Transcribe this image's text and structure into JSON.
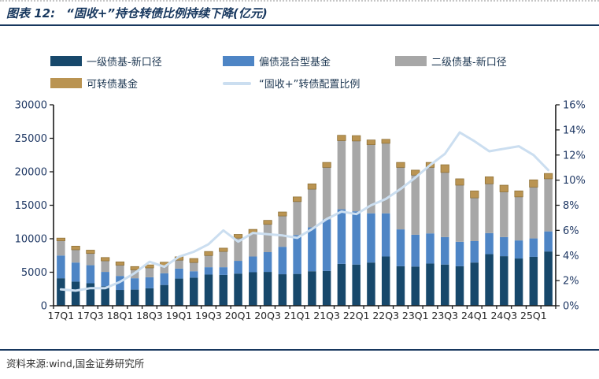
{
  "header": {
    "label": "图表 12:",
    "title": "“固收+”持仓转债比例持续下降(亿元)"
  },
  "legend": [
    {
      "label": "一级债基-新口径",
      "color": "#17486B",
      "symbol": "box"
    },
    {
      "label": "偏债混合型基金",
      "color": "#4E85C5",
      "symbol": "box"
    },
    {
      "label": "二级债基-新口径",
      "color": "#A7A7A7",
      "symbol": "box"
    },
    {
      "label": "可转债基金",
      "color": "#BA9452",
      "symbol": "box"
    },
    {
      "label": "“固收+”转债配置比例",
      "color": "#CBDEF0",
      "symbol": "line"
    }
  ],
  "chart_data": {
    "type": "bar",
    "subtype": "stacked-bars-with-line-overlay",
    "title": "“固收+”持仓转债比例持续下降(亿元)",
    "categories": [
      "17Q1",
      "17Q2",
      "17Q3",
      "17Q4",
      "18Q1",
      "18Q2",
      "18Q3",
      "18Q4",
      "19Q1",
      "19Q2",
      "19Q3",
      "19Q4",
      "20Q1",
      "20Q2",
      "20Q3",
      "20Q4",
      "21Q1",
      "21Q2",
      "21Q3",
      "21Q4",
      "22Q1",
      "22Q2",
      "22Q3",
      "22Q4",
      "23Q1",
      "23Q2",
      "23Q3",
      "23Q4",
      "24Q1",
      "24Q2",
      "24Q3",
      "24Q4",
      "25Q1",
      "25Q2"
    ],
    "x_tick_labels": [
      "17Q1",
      "17Q3",
      "18Q1",
      "18Q3",
      "19Q1",
      "19Q3",
      "20Q1",
      "20Q3",
      "21Q1",
      "21Q3",
      "22Q1",
      "22Q3",
      "23Q1",
      "23Q3",
      "24Q1",
      "24Q3",
      "25Q1"
    ],
    "series": [
      {
        "name": "一级债基-新口径",
        "type": "bar-stack",
        "axis": "left",
        "color": "#17486B",
        "values": [
          4100,
          3600,
          3350,
          2900,
          2350,
          2400,
          2600,
          3100,
          4050,
          4200,
          4650,
          4600,
          4800,
          5000,
          5050,
          4700,
          4750,
          5150,
          5200,
          6250,
          6150,
          6450,
          7350,
          5900,
          5850,
          6300,
          6150,
          5900,
          6450,
          7700,
          7400,
          7050,
          7300,
          8100
        ]
      },
      {
        "name": "偏债混合型基金",
        "type": "bar-stack",
        "axis": "left",
        "color": "#4E85C5",
        "values": [
          3400,
          2850,
          2700,
          2150,
          2100,
          1700,
          1650,
          1750,
          1500,
          950,
          1100,
          1150,
          1900,
          2350,
          2950,
          4100,
          5800,
          6550,
          7700,
          8150,
          7950,
          7350,
          6450,
          5500,
          4750,
          4500,
          4100,
          3650,
          3200,
          3150,
          2850,
          2700,
          2750,
          3000
        ]
      },
      {
        "name": "二级债基-新口径",
        "type": "bar-stack",
        "axis": "left",
        "color": "#A7A7A7",
        "values": [
          2200,
          1900,
          1750,
          1650,
          1600,
          1250,
          1400,
          1100,
          1250,
          1300,
          1750,
          2350,
          3400,
          3400,
          4150,
          4600,
          5000,
          5700,
          7750,
          10250,
          10500,
          10250,
          10450,
          9250,
          8900,
          9850,
          9650,
          8450,
          6450,
          7350,
          6750,
          6500,
          7650,
          7850
        ]
      },
      {
        "name": "可转债基金",
        "type": "bar-stack",
        "axis": "left",
        "color": "#BA9452",
        "values": [
          400,
          550,
          500,
          500,
          500,
          500,
          450,
          550,
          500,
          600,
          600,
          500,
          550,
          650,
          600,
          600,
          700,
          800,
          750,
          800,
          800,
          700,
          600,
          750,
          750,
          750,
          1150,
          950,
          1050,
          1050,
          1000,
          900,
          1100,
          800
        ]
      },
      {
        "name": "“固收+”转债配置比例",
        "type": "line",
        "axis": "right",
        "color": "#CBDEF0",
        "values": [
          1.3,
          1.2,
          1.4,
          1.4,
          1.9,
          2.6,
          3.5,
          3.1,
          3.9,
          4.3,
          4.9,
          6.0,
          5.1,
          5.8,
          5.7,
          5.6,
          5.4,
          6.1,
          6.9,
          7.5,
          7.3,
          8.0,
          8.5,
          9.3,
          10.2,
          11.2,
          12.1,
          13.8,
          13.1,
          12.3,
          12.5,
          12.7,
          12.0,
          10.8
        ]
      }
    ],
    "left_axis": {
      "min": 0,
      "max": 30000,
      "step": 5000,
      "suffix": ""
    },
    "right_axis": {
      "min": 0,
      "max": 16,
      "step": 2,
      "suffix": "%"
    },
    "grid": false,
    "legend_position": "top"
  },
  "source": {
    "text": "资料来源:wind,国金证券研究所"
  }
}
